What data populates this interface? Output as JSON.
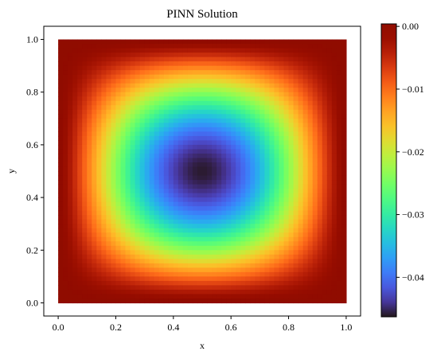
{
  "chart_data": {
    "type": "heatmap",
    "title": "PINN Solution",
    "xlabel": "x",
    "ylabel": "y",
    "x_ticks": [
      "0.0",
      "0.2",
      "0.4",
      "0.6",
      "0.8",
      "1.0"
    ],
    "y_ticks": [
      "0.0",
      "0.2",
      "0.4",
      "0.6",
      "0.8",
      "1.0"
    ],
    "xlim": [
      -0.05,
      1.05
    ],
    "ylim": [
      -0.05,
      1.05
    ],
    "data_domain": {
      "x": [
        0,
        1
      ],
      "y": [
        0,
        1
      ]
    },
    "field": {
      "description_value_min": -0.046,
      "description_value_max": 0.0004,
      "min_location": [
        0.5,
        0.48
      ]
    },
    "colorbar": {
      "colormap": "turbo",
      "range": [
        -0.0463,
        0.0004
      ],
      "ticks": [
        "0.00",
        "−0.01",
        "−0.02",
        "−0.03",
        "−0.04"
      ],
      "tick_values": [
        0.0,
        -0.01,
        -0.02,
        -0.03,
        -0.04
      ]
    }
  }
}
